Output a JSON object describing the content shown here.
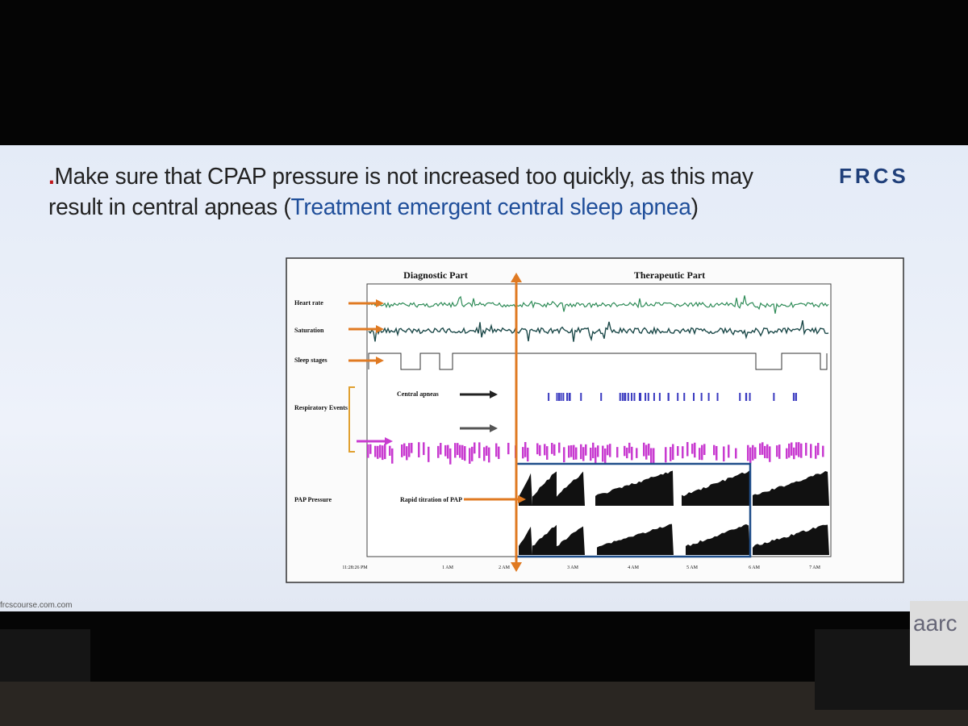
{
  "slide": {
    "bullet": ".",
    "text": "Make sure that CPAP pressure is not increased too quickly, as this may result in central apneas (",
    "highlight": "Treatment emergent central sleep apnea",
    "closing": ")",
    "logo": "FRCS",
    "footer": "frcscourse.com.com"
  },
  "figure": {
    "sections": [
      "Diagnostic Part",
      "Therapeutic Part"
    ],
    "rows": [
      "Heart rate",
      "Saturation",
      "Sleep stages",
      "Respiratory Events",
      "PAP Pressure"
    ],
    "annotations": [
      "Central apneas",
      "Rapid titration of PAP"
    ],
    "time_labels": [
      "11:28:26 PM",
      "1 AM",
      "2 AM",
      "3 AM",
      "4 AM",
      "5 AM",
      "6 AM",
      "7 AM"
    ]
  },
  "stage": {
    "sign": "aarc"
  }
}
